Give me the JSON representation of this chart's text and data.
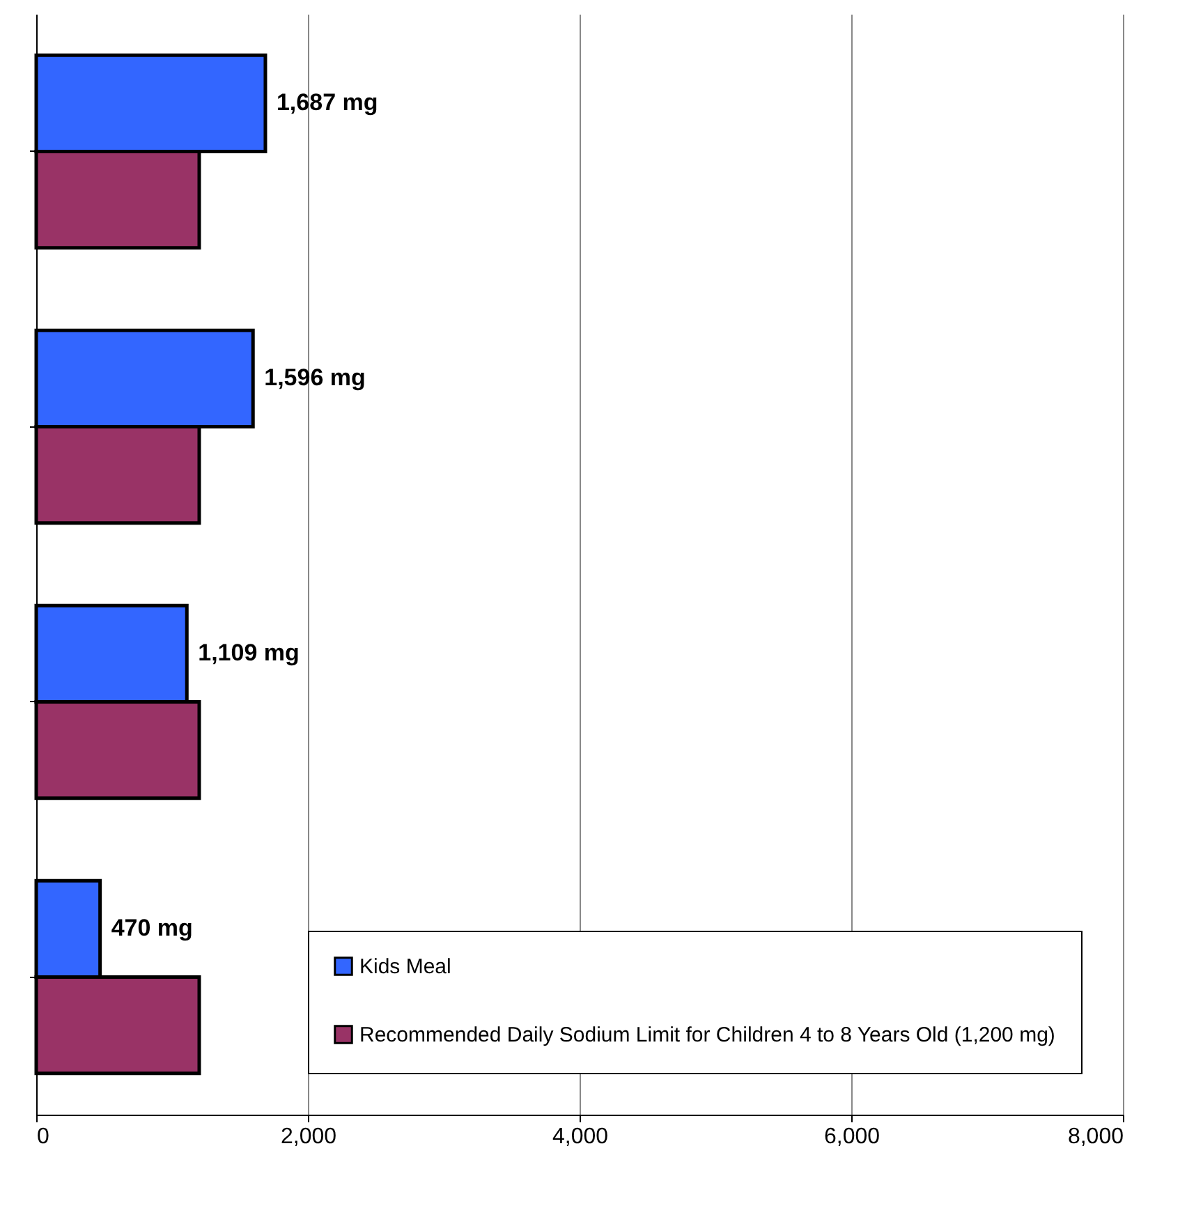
{
  "chart_data": {
    "type": "bar",
    "orientation": "horizontal",
    "categories": [
      null,
      null,
      null,
      null
    ],
    "series": [
      {
        "name": "Kids Meal",
        "color": "#3366ff",
        "values": [
          1687,
          1596,
          1109,
          470
        ],
        "value_labels": [
          "1,687 mg",
          "1,596 mg",
          "1,109 mg",
          "470 mg"
        ]
      },
      {
        "name": "Recommended Daily Sodium Limit for Children 4 to 8 Years Old (1,200 mg)",
        "color": "#993366",
        "values": [
          1200,
          1200,
          1200,
          1200
        ]
      }
    ],
    "xlim": [
      0,
      8000
    ],
    "xticks": [
      0,
      {
        "value": 2000,
        "label": "2,000"
      },
      {
        "value": 4000,
        "label": "4,000"
      },
      {
        "value": 6000,
        "label": "6,000"
      },
      {
        "value": 8000,
        "label": "8,000"
      }
    ],
    "grid": "x",
    "legend": "bottom right",
    "tick_labels": "x"
  }
}
